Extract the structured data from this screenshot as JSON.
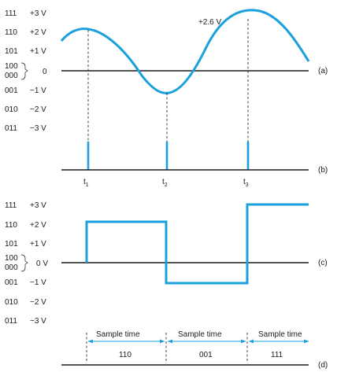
{
  "top_levels": [
    {
      "code": "111",
      "volt": "+3 V"
    },
    {
      "code": "110",
      "volt": "+2 V"
    },
    {
      "code": "101",
      "volt": "+1 V"
    },
    {
      "code": "100",
      "code2": "000",
      "volt": "0"
    },
    {
      "code": "001",
      "volt": "−1 V"
    },
    {
      "code": "010",
      "volt": "−2 V"
    },
    {
      "code": "011",
      "volt": "−3 V"
    }
  ],
  "bottom_levels": [
    {
      "code": "111",
      "volt": "+3 V"
    },
    {
      "code": "110",
      "volt": "+2 V"
    },
    {
      "code": "101",
      "volt": "+1 V"
    },
    {
      "code": "100",
      "code2": "000",
      "volt": "0 V"
    },
    {
      "code": "001",
      "volt": "−1 V"
    },
    {
      "code": "010",
      "volt": "−2 V"
    },
    {
      "code": "011",
      "volt": "−3 V"
    }
  ],
  "peak_label": "+2.6 V",
  "panel_labels": {
    "a": "(a)",
    "b": "(b)",
    "c": "(c)",
    "d": "(d)"
  },
  "times": [
    {
      "t": "t",
      "sub": "1"
    },
    {
      "t": "t",
      "sub": "2"
    },
    {
      "t": "t",
      "sub": "3"
    }
  ],
  "sample_label": "Sample time",
  "sample_codes": [
    "110",
    "001",
    "111"
  ],
  "colors": {
    "signal": "#1aa0dc",
    "ink": "#1a1a1a"
  }
}
